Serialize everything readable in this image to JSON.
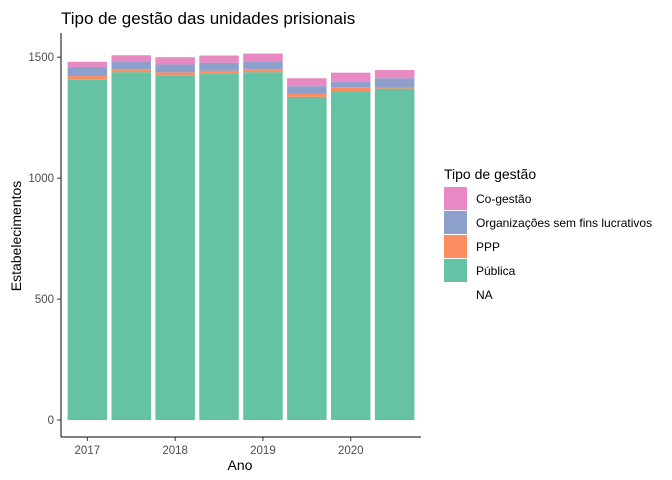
{
  "chart_data": {
    "type": "bar",
    "stacked": true,
    "title": "Tipo de gestão das unidades prisionais",
    "xlabel": "Ano",
    "ylabel": "Estabelecimentos",
    "x_tick_labels": [
      "2017",
      "2018",
      "2019",
      "2020"
    ],
    "x_values": [
      2017.0,
      2017.5,
      2018.0,
      2018.5,
      2019.0,
      2019.5,
      2020.0,
      2020.5
    ],
    "x_range": [
      2016.7,
      2020.8
    ],
    "y_ticks": [
      0,
      500,
      1000,
      1500
    ],
    "ylim": [
      -70,
      1600
    ],
    "grid": false,
    "legend": {
      "title": "Tipo de gestão",
      "position": "right",
      "entries": [
        "Co-gestão",
        "Organizações sem fins lucrativos",
        "PPP",
        "Pública",
        "NA"
      ]
    },
    "series": [
      {
        "name": "Pública",
        "color": "#66C2A5",
        "values": [
          1407,
          1438,
          1425,
          1432,
          1438,
          1336,
          1360,
          1370
        ]
      },
      {
        "name": "PPP",
        "color": "#FC8D62",
        "values": [
          15,
          12,
          12,
          12,
          12,
          14,
          16,
          7
        ]
      },
      {
        "name": "Organizações sem fins lucrativos",
        "color": "#8DA0CB",
        "values": [
          38,
          30,
          33,
          33,
          33,
          30,
          22,
          36
        ]
      },
      {
        "name": "Co-gestão",
        "color": "#E78AC3",
        "values": [
          21,
          28,
          30,
          30,
          32,
          33,
          38,
          34
        ]
      },
      {
        "name": "NA",
        "color": "#BEBEBE",
        "values": [
          0,
          0,
          0,
          0,
          0,
          0,
          0,
          0
        ]
      }
    ]
  }
}
